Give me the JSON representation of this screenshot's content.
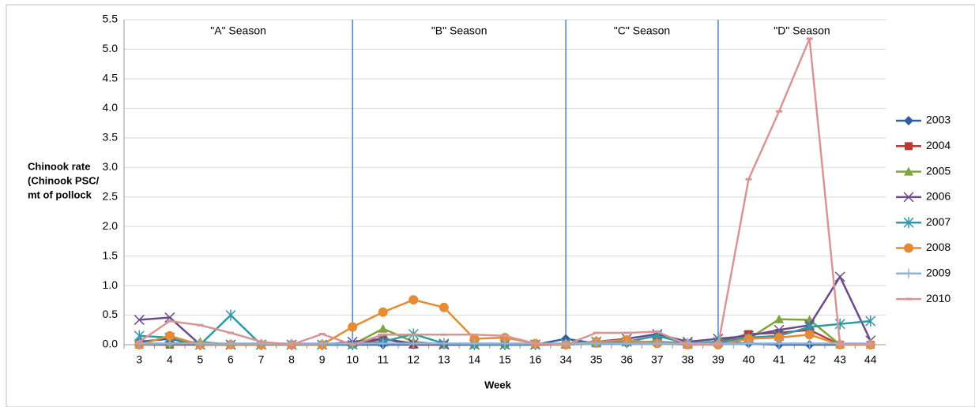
{
  "chart_data": {
    "type": "line",
    "y_label": [
      "Chinook rate",
      "(Chinook PSC/",
      "mt of pollock"
    ],
    "x_label": "Week",
    "categories": [
      3,
      4,
      5,
      6,
      7,
      8,
      9,
      10,
      11,
      12,
      13,
      14,
      15,
      16,
      34,
      35,
      36,
      37,
      38,
      39,
      40,
      41,
      42,
      43,
      44
    ],
    "dividers": [
      10,
      34,
      39
    ],
    "annotations": [
      "\"A\" Season",
      "\"B\" Season",
      "\"C\" Season",
      "\"D\" Season"
    ],
    "ylim": [
      0,
      5.5
    ],
    "yticks": [
      {
        "value": 0,
        "label": "0.0"
      },
      {
        "value": 0.5,
        "label": "0.5"
      },
      {
        "value": 1,
        "label": "1.0"
      },
      {
        "value": 1.5,
        "label": "1.5"
      },
      {
        "value": 2,
        "label": "2.0"
      },
      {
        "value": 2.5,
        "label": "2.5"
      },
      {
        "value": 3,
        "label": "3.0"
      },
      {
        "value": 3.5,
        "label": "3.5"
      },
      {
        "value": 4,
        "label": "4.0"
      },
      {
        "value": 4.5,
        "label": "4.5"
      },
      {
        "value": 5,
        "label": "5.0"
      },
      {
        "value": 5.5,
        "label": "5.5"
      }
    ],
    "grid": true,
    "legend": "right",
    "series": [
      {
        "name": "2003",
        "color": "#2e5f9e",
        "marker": "diamond",
        "values": [
          0.05,
          0.1,
          0,
          0,
          0,
          0,
          0,
          0,
          0,
          0,
          0,
          0,
          0,
          0,
          0.1,
          0.02,
          0.02,
          0.05,
          0.02,
          0.05,
          0.02,
          0,
          0,
          0,
          0
        ]
      },
      {
        "name": "2004",
        "color": "#b83b35",
        "marker": "square",
        "values": [
          0,
          0,
          0,
          0,
          0,
          0,
          0,
          0,
          0.1,
          0,
          0,
          0,
          0,
          0,
          0,
          0.05,
          0.05,
          0.05,
          0,
          0.05,
          0.18,
          0.2,
          0.25,
          0,
          0
        ]
      },
      {
        "name": "2005",
        "color": "#7fa33f",
        "marker": "triangle",
        "values": [
          0,
          0.02,
          0.05,
          0,
          0,
          0,
          0,
          0,
          0.27,
          0.05,
          0,
          0,
          0,
          0,
          0,
          0.02,
          0.05,
          0.05,
          0,
          0.05,
          0.1,
          0.43,
          0.42,
          0,
          0
        ]
      },
      {
        "name": "2006",
        "color": "#6a4a8c",
        "marker": "x",
        "values": [
          0.42,
          0.46,
          0,
          0,
          0,
          0,
          0,
          0.05,
          0.1,
          0.02,
          0,
          0,
          0,
          0,
          0.02,
          0.05,
          0.1,
          0.18,
          0.05,
          0.1,
          0.15,
          0.25,
          0.33,
          1.15,
          0.07
        ]
      },
      {
        "name": "2007",
        "color": "#2f9aa8",
        "marker": "star",
        "values": [
          0.15,
          0.12,
          0,
          0.5,
          0,
          0,
          0,
          0,
          0.05,
          0.18,
          0.02,
          0,
          0,
          0,
          0.02,
          0.05,
          0.05,
          0.15,
          0.02,
          0.05,
          0.12,
          0.15,
          0.3,
          0.35,
          0.4
        ]
      },
      {
        "name": "2008",
        "color": "#e68a33",
        "marker": "circle",
        "values": [
          0,
          0.15,
          0,
          0,
          0,
          0,
          0,
          0.3,
          0.55,
          0.76,
          0.63,
          0.1,
          0.12,
          0.02,
          0,
          0.05,
          0.08,
          0.02,
          0,
          0,
          0.1,
          0.12,
          0.17,
          0,
          0
        ]
      },
      {
        "name": "2009",
        "color": "#8fb1de",
        "marker": "plus",
        "values": [
          0.02,
          0.02,
          0.02,
          0.02,
          0.02,
          0.02,
          0.02,
          0.02,
          0.02,
          0.02,
          0.02,
          0.02,
          0.02,
          0.02,
          0.02,
          0.02,
          0.02,
          0.02,
          0.02,
          0.02,
          0.02,
          0.02,
          0.02,
          0.02,
          0.02
        ]
      },
      {
        "name": "2010",
        "color": "#d99594",
        "marker": "dash",
        "values": [
          0.05,
          0.4,
          0.33,
          0.2,
          0.05,
          0,
          0.18,
          0,
          0.17,
          0.17,
          0.17,
          0.17,
          0.15,
          0.02,
          0,
          0.2,
          0.2,
          0.22,
          0,
          0,
          2.8,
          3.95,
          5.18,
          0,
          0
        ]
      }
    ]
  }
}
